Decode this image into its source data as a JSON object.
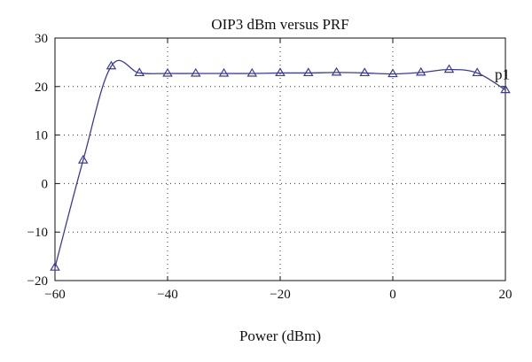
{
  "chart_data": {
    "type": "line",
    "title": "OIP3 dBm versus PRF",
    "xlabel": "Power (dBm)",
    "ylabel": "",
    "xlim": [
      -60,
      20
    ],
    "ylim": [
      -20,
      30
    ],
    "xticks": [
      -60,
      -40,
      -20,
      0,
      20
    ],
    "yticks": [
      -20,
      -10,
      0,
      10,
      20,
      30
    ],
    "xtick_labels": [
      "−60",
      "−40",
      "−20",
      "0",
      "20"
    ],
    "ytick_labels": [
      "−20",
      "−10",
      "0",
      "10",
      "20",
      "30"
    ],
    "grid": true,
    "series": [
      {
        "name": "p1",
        "color": "#3b3b9a",
        "marker": "triangle",
        "x": [
          -60,
          -55,
          -50,
          -45,
          -40,
          -35,
          -30,
          -25,
          -20,
          -15,
          -10,
          -5,
          0,
          5,
          10,
          15,
          20
        ],
        "y": [
          -17.3,
          4.8,
          24.2,
          22.8,
          22.7,
          22.7,
          22.7,
          22.7,
          22.8,
          22.8,
          22.9,
          22.8,
          22.6,
          22.9,
          23.5,
          22.8,
          19.3
        ]
      }
    ]
  }
}
